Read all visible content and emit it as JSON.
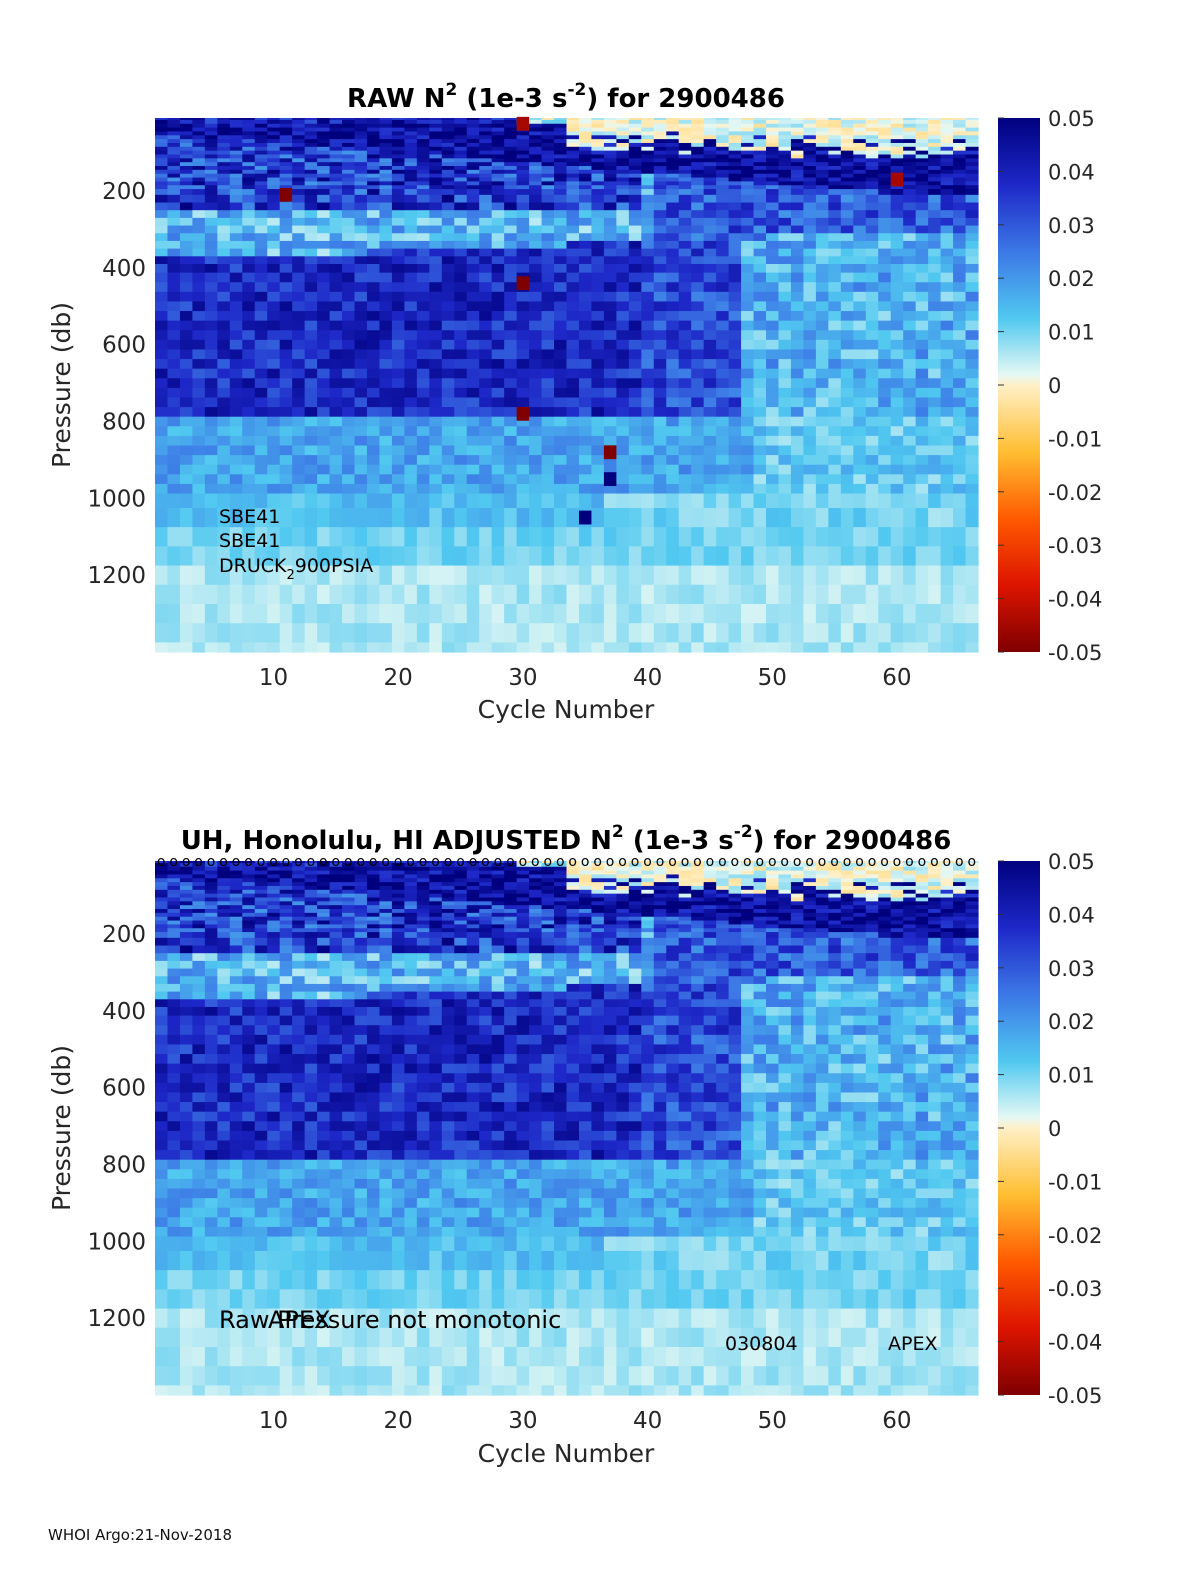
{
  "chart_data": [
    {
      "type": "heatmap",
      "title_parts": {
        "prefix": "RAW N",
        "exp1": "2",
        "mid": " (1e-3 s",
        "exp2": "-2",
        "suffix": ") for 2900486"
      },
      "xlabel": "Cycle Number",
      "ylabel": "Pressure (db)",
      "xlim": [
        1,
        66
      ],
      "ylim": [
        1400,
        10
      ],
      "xticks": [
        10,
        20,
        30,
        40,
        50,
        60
      ],
      "yticks": [
        200,
        400,
        600,
        800,
        1000,
        1200
      ],
      "annotations": [
        "SBE41",
        "SBE41"
      ],
      "sensor_annotation": {
        "text": "DRUCK",
        "subscript": "2",
        "suffix": "900PSIA"
      },
      "colorbar": {
        "range": [
          -0.05,
          0.05
        ],
        "ticks": [
          "0.05",
          "0.04",
          "0.03",
          "0.02",
          "0.01",
          "0",
          "-0.01",
          "-0.02",
          "-0.03",
          "-0.04",
          "-0.05"
        ]
      },
      "pressure_levels": [
        10,
        20,
        30,
        40,
        50,
        60,
        70,
        80,
        90,
        100,
        110,
        120,
        130,
        140,
        150,
        160,
        170,
        180,
        190,
        200,
        220,
        240,
        260,
        280,
        300,
        320,
        340,
        360,
        380,
        400,
        425,
        450,
        475,
        500,
        525,
        550,
        575,
        600,
        625,
        650,
        675,
        700,
        725,
        750,
        775,
        800,
        825,
        850,
        875,
        900,
        925,
        950,
        975,
        1000,
        1050,
        1100,
        1150,
        1200,
        1250,
        1300,
        1350,
        1400
      ],
      "outliers": [
        {
          "cycle": 11,
          "pressure": 210,
          "value": -0.05
        },
        {
          "cycle": 30,
          "pressure": 25,
          "value": -0.045
        },
        {
          "cycle": 30,
          "pressure": 440,
          "value": -0.05
        },
        {
          "cycle": 30,
          "pressure": 780,
          "value": -0.05
        },
        {
          "cycle": 37,
          "pressure": 880,
          "value": -0.05
        },
        {
          "cycle": 37,
          "pressure": 950,
          "value": 0.05
        },
        {
          "cycle": 35,
          "pressure": 1050,
          "value": 0.05
        },
        {
          "cycle": 60,
          "pressure": 170,
          "value": -0.045
        }
      ]
    },
    {
      "type": "heatmap",
      "title_parts": {
        "prefix": "UH, Honolulu, HI  ADJUSTED N",
        "exp1": "2",
        "mid": " (1e-3 s",
        "exp2": "-2",
        "suffix": ") for 2900486"
      },
      "xlabel": "Cycle Number",
      "ylabel": "Pressure (db)",
      "xlim": [
        1,
        66
      ],
      "ylim": [
        1400,
        10
      ],
      "xticks": [
        10,
        20,
        30,
        40,
        50,
        60
      ],
      "yticks": [
        200,
        400,
        600,
        800,
        1000,
        1200
      ],
      "qc_marker": "o",
      "annotations": [
        "Raw Pressure not monotonic",
        "APEX",
        "030804",
        "APEX"
      ],
      "colorbar": {
        "range": [
          -0.05,
          0.05
        ],
        "ticks": [
          "0.05",
          "0.04",
          "0.03",
          "0.02",
          "0.01",
          "0",
          "-0.01",
          "-0.02",
          "-0.03",
          "-0.04",
          "-0.05"
        ]
      }
    }
  ],
  "footer": "WHOI Argo:21-Nov-2018"
}
